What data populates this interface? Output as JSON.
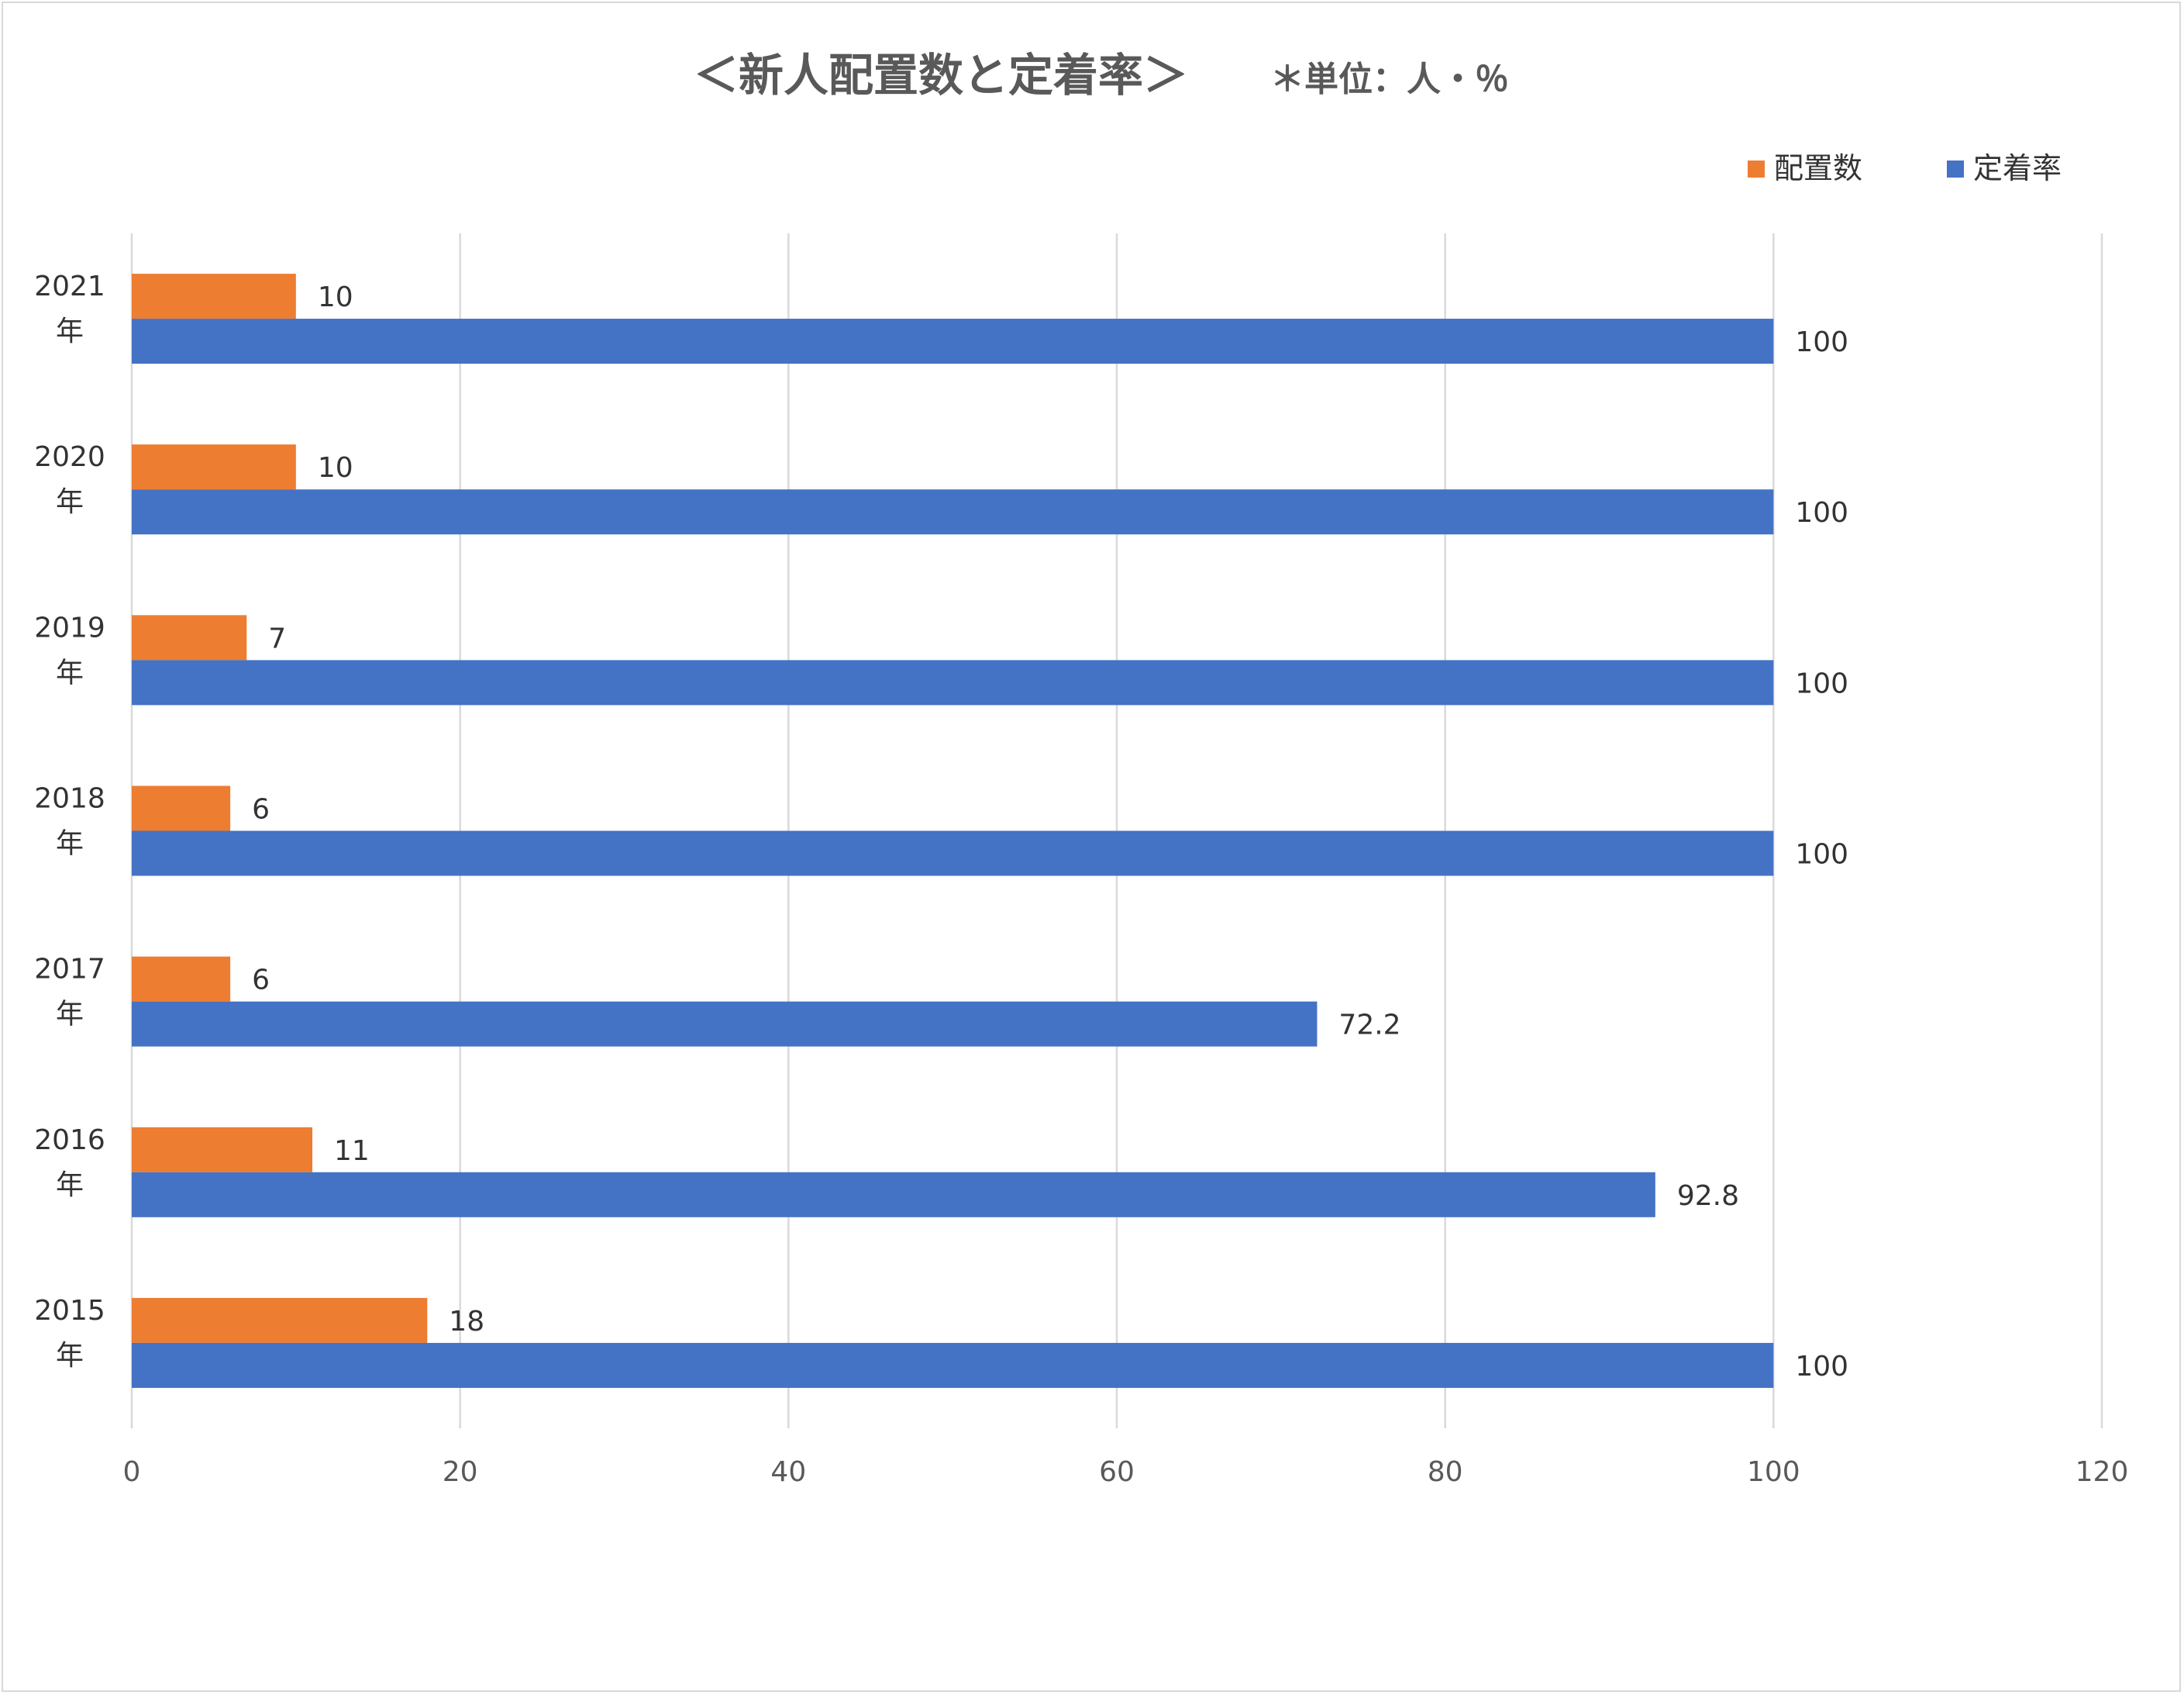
{
  "chart_data": {
    "type": "bar",
    "orientation": "horizontal",
    "title": "＜新人配置数と定着率＞",
    "subtitle": "＊単位：人・％",
    "categories": [
      [
        "2021",
        "年"
      ],
      [
        "2020",
        "年"
      ],
      [
        "2019",
        "年"
      ],
      [
        "2018",
        "年"
      ],
      [
        "2017",
        "年"
      ],
      [
        "2016",
        "年"
      ],
      [
        "2015",
        "年"
      ]
    ],
    "series": [
      {
        "name": "配置数",
        "color": "#ED7D31",
        "values": [
          10,
          10,
          7,
          6,
          6,
          11,
          18
        ],
        "labels": [
          "10",
          "10",
          "7",
          "6",
          "6",
          "11",
          "18"
        ]
      },
      {
        "name": "定着率",
        "color": "#4472C4",
        "values": [
          100,
          100,
          100,
          100,
          72.2,
          92.8,
          100
        ],
        "labels": [
          "100",
          "100",
          "100",
          "100",
          "72.2",
          "92.8",
          "100"
        ]
      }
    ],
    "xlim": [
      0,
      120
    ],
    "xticks": [
      "0",
      "20",
      "40",
      "60",
      "80",
      "100",
      "120"
    ],
    "grid": true,
    "legend_position": "top-right"
  }
}
